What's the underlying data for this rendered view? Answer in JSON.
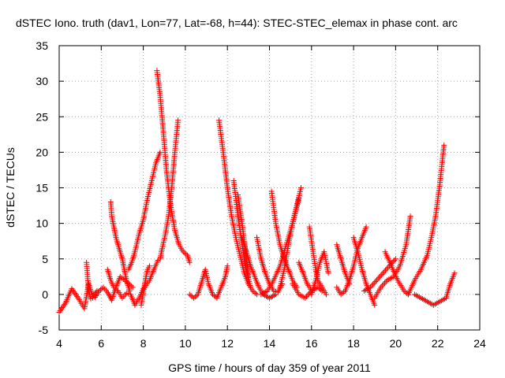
{
  "chart_data": {
    "type": "scatter",
    "title": "dSTEC Iono. truth (dav1, Lon=77, Lat=-68, h=44): STEC-STEC_elemax in phase cont. arc",
    "xlabel": "GPS time / hours of day 359 of year 2011",
    "ylabel": "dSTEC  / TECUs",
    "xlim": [
      4,
      24
    ],
    "ylim": [
      -5,
      35
    ],
    "grid": true,
    "marker": "+",
    "xticks": [
      "4",
      "6",
      "8",
      "10",
      "12",
      "14",
      "16",
      "18",
      "20",
      "22",
      "24"
    ],
    "yticks": [
      "-5",
      "0",
      "5",
      "10",
      "15",
      "20",
      "25",
      "30",
      "35"
    ],
    "series": [
      {
        "name": "a1",
        "color": "#ff0000",
        "x": [
          4.0,
          4.3,
          4.6,
          4.9,
          5.2,
          5.4,
          5.6,
          5.8
        ],
        "y": [
          -2.5,
          -1.2,
          0.8,
          -0.5,
          -2.0,
          1.5,
          -0.3,
          0.5
        ]
      },
      {
        "name": "a2",
        "color": "#ff0000",
        "x": [
          5.3,
          5.35,
          5.4,
          5.5,
          5.7,
          5.9,
          6.1,
          6.3,
          6.5,
          6.7,
          6.9,
          7.2,
          7.5
        ],
        "y": [
          4.5,
          2.5,
          0.5,
          -0.6,
          -0.4,
          0.5,
          1.0,
          0.3,
          -0.8,
          1.0,
          2.5,
          1.8,
          1.0
        ]
      },
      {
        "name": "a3",
        "color": "#ff0000",
        "x": [
          6.45,
          6.5,
          6.6,
          6.7,
          6.8,
          6.9,
          7.0,
          7.1,
          7.2,
          7.35
        ],
        "y": [
          13.0,
          11.0,
          9.5,
          8.0,
          7.0,
          6.0,
          5.0,
          3.5,
          2.0,
          0.5
        ]
      },
      {
        "name": "a4",
        "color": "#ff0000",
        "x": [
          6.3,
          6.45,
          6.6,
          6.75
        ],
        "y": [
          3.5,
          2.0,
          1.0,
          0.5
        ]
      },
      {
        "name": "a5",
        "color": "#ff0000",
        "x": [
          6.8,
          7.0,
          7.2,
          7.4,
          7.6,
          7.8,
          8.0,
          8.3,
          8.5,
          8.7
        ],
        "y": [
          0.5,
          -0.5,
          0.2,
          0.0,
          -1.5,
          -0.5,
          0.8,
          2.0,
          3.5,
          4.8
        ]
      },
      {
        "name": "a6",
        "color": "#ff0000",
        "x": [
          7.3,
          7.45,
          7.6,
          7.8,
          8.0,
          8.2,
          8.4,
          8.6,
          8.8
        ],
        "y": [
          3.5,
          4.5,
          6.0,
          8.5,
          10.5,
          13.5,
          16.0,
          18.5,
          20.0
        ]
      },
      {
        "name": "a7",
        "color": "#ff0000",
        "x": [
          7.9,
          8.0,
          8.1,
          8.2,
          8.3
        ],
        "y": [
          -1.5,
          0.2,
          2.0,
          3.5,
          4.0
        ]
      },
      {
        "name": "a8",
        "color": "#ff0000",
        "x": [
          8.65,
          8.8,
          8.95,
          9.1,
          9.3,
          9.5,
          9.7,
          9.9,
          10.1,
          10.2
        ],
        "y": [
          31.5,
          28.0,
          23.0,
          17.5,
          12.5,
          9.0,
          7.0,
          6.0,
          5.5,
          4.5
        ]
      },
      {
        "name": "a9",
        "color": "#ff0000",
        "x": [
          8.8,
          8.9,
          9.05,
          9.2,
          9.35,
          9.5,
          9.65
        ],
        "y": [
          5.0,
          6.5,
          8.5,
          11.0,
          15.0,
          20.0,
          24.5
        ]
      },
      {
        "name": "a10",
        "color": "#ff0000",
        "x": [
          10.2,
          10.4,
          10.6,
          10.8,
          10.95,
          11.1,
          11.3,
          11.5,
          11.7,
          11.9,
          12.0
        ],
        "y": [
          0.0,
          -0.5,
          0.0,
          2.0,
          3.5,
          1.5,
          0.0,
          -0.5,
          1.0,
          2.5,
          4.0
        ]
      },
      {
        "name": "a11",
        "color": "#ff0000",
        "x": [
          11.6,
          11.8,
          12.0,
          12.2,
          12.4,
          12.6,
          12.8,
          13.0,
          13.2,
          13.4
        ],
        "y": [
          24.5,
          20.0,
          15.0,
          11.0,
          8.0,
          5.5,
          3.0,
          1.5,
          0.5,
          0.0
        ]
      },
      {
        "name": "a12",
        "color": "#ff0000",
        "x": [
          12.3,
          12.5,
          12.7,
          12.9,
          13.1
        ],
        "y": [
          16.0,
          11.0,
          7.0,
          3.5,
          1.0
        ]
      },
      {
        "name": "a13",
        "color": "#ff0000",
        "x": [
          12.5,
          12.6,
          12.7,
          12.8,
          12.9,
          13.0
        ],
        "y": [
          14.0,
          12.0,
          10.0,
          7.5,
          5.0,
          2.5
        ]
      },
      {
        "name": "a14",
        "color": "#ff0000",
        "x": [
          12.7,
          12.9,
          13.1,
          13.3,
          13.5,
          13.7,
          14.0,
          14.3
        ],
        "y": [
          8.0,
          6.0,
          4.0,
          2.5,
          1.0,
          0.0,
          -0.5,
          0.0
        ]
      },
      {
        "name": "a15",
        "color": "#ff0000",
        "x": [
          13.4,
          13.6,
          13.8,
          14.0,
          14.2,
          14.4,
          14.6
        ],
        "y": [
          8.0,
          5.0,
          3.0,
          1.5,
          0.5,
          0.3,
          1.5
        ]
      },
      {
        "name": "a16",
        "color": "#ff0000",
        "x": [
          14.1,
          14.3,
          14.5,
          14.7,
          14.9,
          15.1,
          15.3
        ],
        "y": [
          14.5,
          10.0,
          7.0,
          5.0,
          3.5,
          2.0,
          1.0
        ]
      },
      {
        "name": "a17",
        "color": "#ff0000",
        "x": [
          13.6,
          13.9,
          14.2,
          14.5,
          14.8,
          15.1,
          15.4
        ],
        "y": [
          0.0,
          0.5,
          2.0,
          4.0,
          7.0,
          10.0,
          13.5
        ]
      },
      {
        "name": "a18",
        "color": "#ff0000",
        "x": [
          14.5,
          14.7,
          14.9,
          15.1,
          15.3,
          15.5
        ],
        "y": [
          1.0,
          3.5,
          7.0,
          10.0,
          12.5,
          15.0
        ]
      },
      {
        "name": "a19",
        "color": "#ff0000",
        "x": [
          15.1,
          15.4,
          15.7,
          16.0,
          16.3,
          16.5
        ],
        "y": [
          1.5,
          0.0,
          -0.5,
          0.5,
          1.0,
          0.5
        ]
      },
      {
        "name": "a20",
        "color": "#ff0000",
        "x": [
          15.9,
          16.0,
          16.1,
          16.2,
          16.3,
          16.5,
          16.7
        ],
        "y": [
          9.5,
          7.5,
          5.5,
          3.5,
          2.0,
          1.0,
          0.0
        ]
      },
      {
        "name": "a21",
        "color": "#ff0000",
        "x": [
          15.4,
          15.6,
          15.8,
          16.0
        ],
        "y": [
          4.5,
          3.0,
          1.5,
          0.5
        ]
      },
      {
        "name": "a22",
        "color": "#ff0000",
        "x": [
          16.0,
          16.2,
          16.4,
          16.6,
          16.8
        ],
        "y": [
          0.0,
          2.0,
          4.5,
          6.0,
          3.0
        ]
      },
      {
        "name": "a23",
        "color": "#ff0000",
        "x": [
          17.2,
          17.4,
          17.6,
          17.8
        ],
        "y": [
          7.0,
          5.0,
          3.0,
          1.5
        ]
      },
      {
        "name": "a24",
        "color": "#ff0000",
        "x": [
          17.2,
          17.4,
          17.6,
          17.8,
          18.0,
          18.2,
          18.4,
          18.6
        ],
        "y": [
          1.0,
          0.0,
          0.5,
          2.0,
          4.0,
          6.5,
          8.0,
          9.5
        ]
      },
      {
        "name": "a25",
        "color": "#ff0000",
        "x": [
          18.0,
          18.2,
          18.4,
          18.6,
          18.8,
          19.0
        ],
        "y": [
          8.0,
          6.0,
          3.5,
          1.5,
          0.0,
          -1.5
        ]
      },
      {
        "name": "a26",
        "color": "#ff0000",
        "x": [
          18.5,
          18.8,
          19.1,
          19.4,
          19.7,
          20.0
        ],
        "y": [
          0.5,
          1.0,
          2.0,
          3.0,
          4.0,
          5.0
        ]
      },
      {
        "name": "a27",
        "color": "#ff0000",
        "x": [
          19.0,
          19.3,
          19.6,
          19.9,
          20.2,
          20.5,
          20.7
        ],
        "y": [
          -0.5,
          1.0,
          2.0,
          2.5,
          4.0,
          7.0,
          11.0
        ]
      },
      {
        "name": "a28",
        "color": "#ff0000",
        "x": [
          19.5,
          19.8,
          20.1,
          20.4,
          20.6
        ],
        "y": [
          6.0,
          4.0,
          2.0,
          0.5,
          0.0
        ]
      },
      {
        "name": "a29",
        "color": "#ff0000",
        "x": [
          20.6,
          20.9,
          21.2,
          21.5,
          21.7,
          21.9,
          22.1,
          22.3
        ],
        "y": [
          0.0,
          2.0,
          3.5,
          5.5,
          8.0,
          11.0,
          15.5,
          21.0
        ]
      },
      {
        "name": "a30",
        "color": "#ff0000",
        "x": [
          20.9,
          21.2,
          21.5,
          21.8,
          22.1,
          22.4,
          22.6,
          22.8
        ],
        "y": [
          0.0,
          -0.5,
          -1.0,
          -1.5,
          -1.0,
          -0.5,
          1.5,
          3.0
        ]
      }
    ]
  }
}
